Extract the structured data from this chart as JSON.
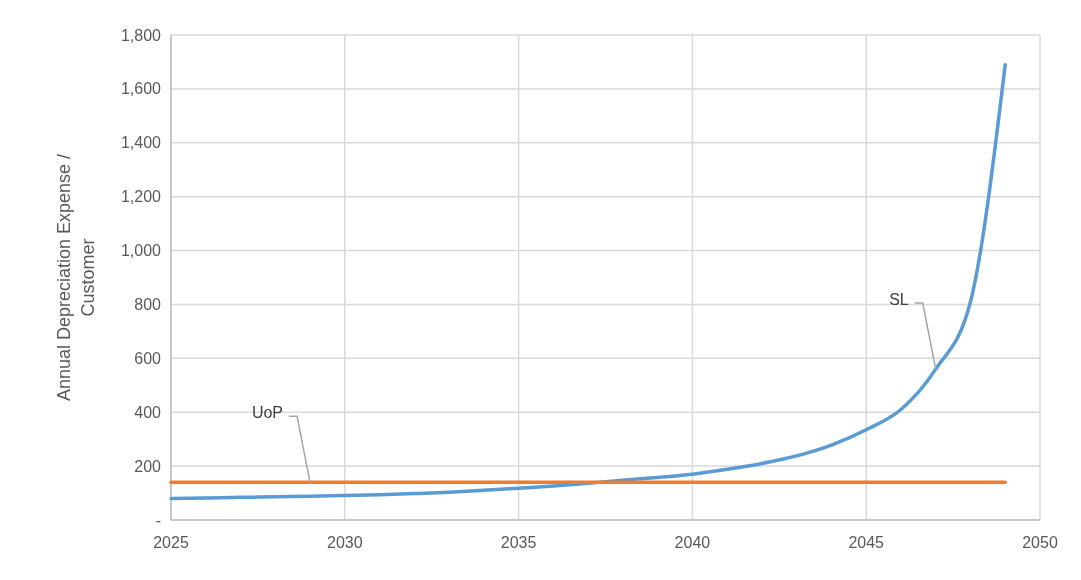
{
  "chart_data": {
    "type": "line",
    "ylabel": "Annual Depreciation Expense / Customer",
    "x": [
      2025,
      2026,
      2027,
      2028,
      2029,
      2030,
      2031,
      2032,
      2033,
      2034,
      2035,
      2036,
      2037,
      2038,
      2039,
      2040,
      2041,
      2042,
      2043,
      2044,
      2045,
      2046,
      2047,
      2048,
      2049
    ],
    "series": [
      {
        "color": "#5b9bd5",
        "values": [
          80,
          82,
          84,
          86,
          88,
          91,
          94,
          98,
          103,
          110,
          118,
          126,
          136,
          148,
          158,
          170,
          188,
          210,
          238,
          278,
          335,
          410,
          560,
          810,
          1690
        ]
      },
      {
        "color": "#ed7d31",
        "values": [
          140,
          140,
          140,
          140,
          140,
          140,
          140,
          140,
          140,
          140,
          140,
          140,
          140,
          140,
          140,
          140,
          140,
          140,
          140,
          140,
          140,
          140,
          140,
          140,
          140
        ]
      }
    ],
    "xlim": [
      2025,
      2050
    ],
    "xticks": [
      2025,
      2030,
      2035,
      2040,
      2045,
      2050
    ],
    "ylim": [
      0,
      1800
    ],
    "yticks": [
      {
        "value": 0,
        "label": "-"
      },
      200,
      400,
      600,
      800,
      {
        "value": 1000,
        "label": "1,000"
      },
      {
        "value": 1200,
        "label": "1,200"
      },
      {
        "value": 1400,
        "label": "1,400"
      },
      {
        "value": 1600,
        "label": "1,600"
      },
      {
        "value": 1800,
        "label": "1,800"
      }
    ],
    "grid": true,
    "marker": "none",
    "line_style": "solid",
    "annotations": [
      {
        "text": "UoP",
        "x": 2029,
        "y": 140
      },
      {
        "text": "SL",
        "x": 2047,
        "y": 560
      }
    ]
  }
}
